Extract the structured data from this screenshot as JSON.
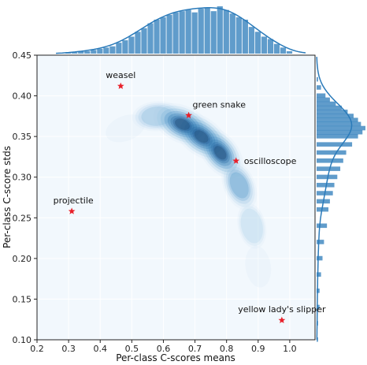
{
  "chart_data": {
    "type": "heatmap",
    "subtype": "joint-kde-with-marginal-histograms",
    "xlabel": "Per-class C-scores means",
    "ylabel": "Per-class C-score stds",
    "xlim": [
      0.2,
      1.08
    ],
    "ylim": [
      0.1,
      0.45
    ],
    "x_ticks": [
      "0.2",
      "0.3",
      "0.4",
      "0.5",
      "0.6",
      "0.7",
      "0.8",
      "0.9",
      "1.0"
    ],
    "y_ticks": [
      "0.10",
      "0.15",
      "0.20",
      "0.25",
      "0.30",
      "0.35",
      "0.40",
      "0.45"
    ],
    "grid": true,
    "colors": {
      "density": "#1f77b4",
      "background": "#f2f8fd",
      "peak": "#1a1a1a",
      "star": "#e8202a",
      "marginal": "#2b7bba"
    },
    "density_ridge": [
      {
        "x": 0.48,
        "y": 0.36,
        "density": 0.1
      },
      {
        "x": 0.58,
        "y": 0.375,
        "density": 0.45
      },
      {
        "x": 0.66,
        "y": 0.365,
        "density": 0.95
      },
      {
        "x": 0.72,
        "y": 0.35,
        "density": 1.0
      },
      {
        "x": 0.78,
        "y": 0.33,
        "density": 0.85
      },
      {
        "x": 0.84,
        "y": 0.29,
        "density": 0.55
      },
      {
        "x": 0.88,
        "y": 0.24,
        "density": 0.3
      },
      {
        "x": 0.9,
        "y": 0.19,
        "density": 0.12
      }
    ],
    "annotations": [
      {
        "label": "weasel",
        "x": 0.465,
        "y": 0.412
      },
      {
        "label": "green snake",
        "x": 0.68,
        "y": 0.376
      },
      {
        "label": "oscilloscope",
        "x": 0.83,
        "y": 0.32
      },
      {
        "label": "projectile",
        "x": 0.31,
        "y": 0.258
      },
      {
        "label": "yellow lady's slipper",
        "x": 0.975,
        "y": 0.124
      }
    ],
    "marginal_x": {
      "bin_width": 0.02,
      "bins": [
        {
          "x": 0.3,
          "count": 1
        },
        {
          "x": 0.32,
          "count": 1
        },
        {
          "x": 0.34,
          "count": 2
        },
        {
          "x": 0.36,
          "count": 2
        },
        {
          "x": 0.38,
          "count": 3
        },
        {
          "x": 0.4,
          "count": 4
        },
        {
          "x": 0.42,
          "count": 5
        },
        {
          "x": 0.44,
          "count": 6
        },
        {
          "x": 0.46,
          "count": 9
        },
        {
          "x": 0.48,
          "count": 11
        },
        {
          "x": 0.5,
          "count": 14
        },
        {
          "x": 0.52,
          "count": 18
        },
        {
          "x": 0.54,
          "count": 21
        },
        {
          "x": 0.56,
          "count": 25
        },
        {
          "x": 0.58,
          "count": 28
        },
        {
          "x": 0.6,
          "count": 30
        },
        {
          "x": 0.62,
          "count": 32
        },
        {
          "x": 0.64,
          "count": 34
        },
        {
          "x": 0.66,
          "count": 35
        },
        {
          "x": 0.68,
          "count": 36
        },
        {
          "x": 0.7,
          "count": 34
        },
        {
          "x": 0.72,
          "count": 37
        },
        {
          "x": 0.74,
          "count": 38
        },
        {
          "x": 0.76,
          "count": 35
        },
        {
          "x": 0.78,
          "count": 39
        },
        {
          "x": 0.8,
          "count": 36
        },
        {
          "x": 0.82,
          "count": 33
        },
        {
          "x": 0.84,
          "count": 30
        },
        {
          "x": 0.86,
          "count": 28
        },
        {
          "x": 0.88,
          "count": 22
        },
        {
          "x": 0.9,
          "count": 18
        },
        {
          "x": 0.92,
          "count": 14
        },
        {
          "x": 0.94,
          "count": 12
        },
        {
          "x": 0.96,
          "count": 8
        },
        {
          "x": 0.98,
          "count": 5
        },
        {
          "x": 1.0,
          "count": 2
        }
      ]
    },
    "marginal_y": {
      "bin_width": 0.006,
      "bins": [
        {
          "y": 0.1,
          "count": 1
        },
        {
          "y": 0.12,
          "count": 1
        },
        {
          "y": 0.14,
          "count": 2
        },
        {
          "y": 0.16,
          "count": 2
        },
        {
          "y": 0.18,
          "count": 3
        },
        {
          "y": 0.2,
          "count": 4
        },
        {
          "y": 0.22,
          "count": 5
        },
        {
          "y": 0.24,
          "count": 7
        },
        {
          "y": 0.26,
          "count": 8
        },
        {
          "y": 0.27,
          "count": 9
        },
        {
          "y": 0.28,
          "count": 11
        },
        {
          "y": 0.29,
          "count": 12
        },
        {
          "y": 0.3,
          "count": 14
        },
        {
          "y": 0.31,
          "count": 16
        },
        {
          "y": 0.32,
          "count": 18
        },
        {
          "y": 0.33,
          "count": 20
        },
        {
          "y": 0.34,
          "count": 24
        },
        {
          "y": 0.35,
          "count": 28
        },
        {
          "y": 0.355,
          "count": 31
        },
        {
          "y": 0.36,
          "count": 33
        },
        {
          "y": 0.365,
          "count": 30
        },
        {
          "y": 0.37,
          "count": 28
        },
        {
          "y": 0.375,
          "count": 25
        },
        {
          "y": 0.38,
          "count": 21
        },
        {
          "y": 0.385,
          "count": 17
        },
        {
          "y": 0.39,
          "count": 13
        },
        {
          "y": 0.395,
          "count": 9
        },
        {
          "y": 0.4,
          "count": 6
        },
        {
          "y": 0.41,
          "count": 3
        },
        {
          "y": 0.42,
          "count": 1
        }
      ]
    }
  }
}
